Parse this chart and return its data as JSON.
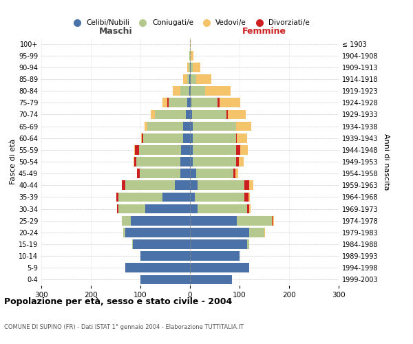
{
  "age_groups": [
    "0-4",
    "5-9",
    "10-14",
    "15-19",
    "20-24",
    "25-29",
    "30-34",
    "35-39",
    "40-44",
    "45-49",
    "50-54",
    "55-59",
    "60-64",
    "65-69",
    "70-74",
    "75-79",
    "80-84",
    "85-89",
    "90-94",
    "95-99",
    "100+"
  ],
  "birth_years": [
    "1999-2003",
    "1994-1998",
    "1989-1993",
    "1984-1988",
    "1979-1983",
    "1974-1978",
    "1969-1973",
    "1964-1968",
    "1959-1963",
    "1954-1958",
    "1949-1953",
    "1944-1948",
    "1939-1943",
    "1934-1938",
    "1929-1933",
    "1924-1928",
    "1919-1923",
    "1914-1918",
    "1909-1913",
    "1904-1908",
    "≤ 1903"
  ],
  "colors": {
    "celibi": "#4a72a8",
    "coniugati": "#b5c98e",
    "vedovi": "#f5c36a",
    "divorziati": "#cc2020"
  },
  "maschi": {
    "celibi": [
      100,
      130,
      100,
      115,
      130,
      120,
      90,
      55,
      30,
      20,
      20,
      18,
      14,
      14,
      9,
      5,
      2,
      1,
      0,
      0,
      0
    ],
    "coniugati": [
      0,
      0,
      0,
      2,
      5,
      18,
      55,
      90,
      100,
      82,
      88,
      85,
      80,
      72,
      62,
      38,
      18,
      5,
      3,
      1,
      0
    ],
    "vedovi": [
      0,
      0,
      0,
      0,
      0,
      0,
      0,
      0,
      0,
      0,
      1,
      1,
      2,
      5,
      8,
      10,
      15,
      8,
      3,
      1,
      0
    ],
    "divorziati": [
      0,
      0,
      0,
      0,
      0,
      0,
      2,
      3,
      8,
      5,
      5,
      8,
      3,
      0,
      0,
      3,
      0,
      0,
      0,
      0,
      0
    ]
  },
  "femmine": {
    "celibi": [
      85,
      120,
      100,
      115,
      120,
      95,
      15,
      10,
      15,
      12,
      5,
      5,
      5,
      5,
      4,
      3,
      2,
      1,
      1,
      0,
      0
    ],
    "coniugati": [
      0,
      0,
      0,
      5,
      30,
      70,
      100,
      100,
      95,
      75,
      88,
      88,
      88,
      88,
      70,
      52,
      28,
      12,
      5,
      2,
      0
    ],
    "vedovi": [
      0,
      0,
      0,
      0,
      1,
      2,
      2,
      3,
      8,
      5,
      10,
      15,
      20,
      30,
      35,
      42,
      52,
      30,
      15,
      5,
      2
    ],
    "divorziati": [
      0,
      0,
      0,
      0,
      0,
      2,
      5,
      8,
      10,
      5,
      5,
      8,
      2,
      0,
      3,
      5,
      0,
      0,
      0,
      0,
      0
    ]
  },
  "title": "Popolazione per età, sesso e stato civile - 2004",
  "subtitle": "COMUNE DI SUPINO (FR) - Dati ISTAT 1° gennaio 2004 - Elaborazione TUTTITALIA.IT",
  "xlabel_left": "Maschi",
  "xlabel_right": "Femmine",
  "ylabel_left": "Fasce di età",
  "ylabel_right": "Anni di nascita",
  "xlim": 300,
  "legend_labels": [
    "Celibi/Nubili",
    "Coniugati/e",
    "Vedovi/e",
    "Divorziati/e"
  ]
}
